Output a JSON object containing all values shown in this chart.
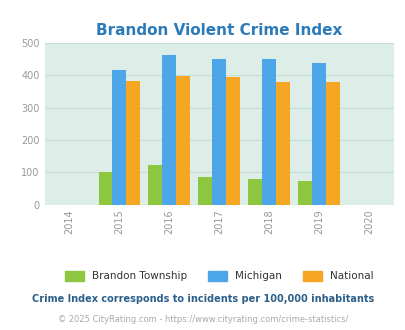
{
  "title": "Brandon Violent Crime Index",
  "title_color": "#2b7bba",
  "years": [
    2015,
    2016,
    2017,
    2018,
    2019
  ],
  "brandon": [
    100,
    122,
    85,
    80,
    72
  ],
  "michigan": [
    415,
    462,
    450,
    450,
    438
  ],
  "national": [
    382,
    397,
    394,
    379,
    378
  ],
  "bar_colors": {
    "brandon": "#8dc63f",
    "michigan": "#4da6e8",
    "national": "#f5a623"
  },
  "xlim": [
    2013.5,
    2020.5
  ],
  "ylim": [
    0,
    500
  ],
  "yticks": [
    0,
    100,
    200,
    300,
    400,
    500
  ],
  "xticks": [
    2014,
    2015,
    2016,
    2017,
    2018,
    2019,
    2020
  ],
  "bg_color": "#ddeee8",
  "bar_width": 0.28,
  "legend_labels": [
    "Brandon Township",
    "Michigan",
    "National"
  ],
  "footnote": "Crime Index corresponds to incidents per 100,000 inhabitants",
  "footnote2": "© 2025 CityRating.com - https://www.cityrating.com/crime-statistics/",
  "footnote_color": "#2b5f8a",
  "footnote2_color": "#aaaaaa",
  "tick_color": "#999999",
  "grid_color": "#c5ddd5"
}
